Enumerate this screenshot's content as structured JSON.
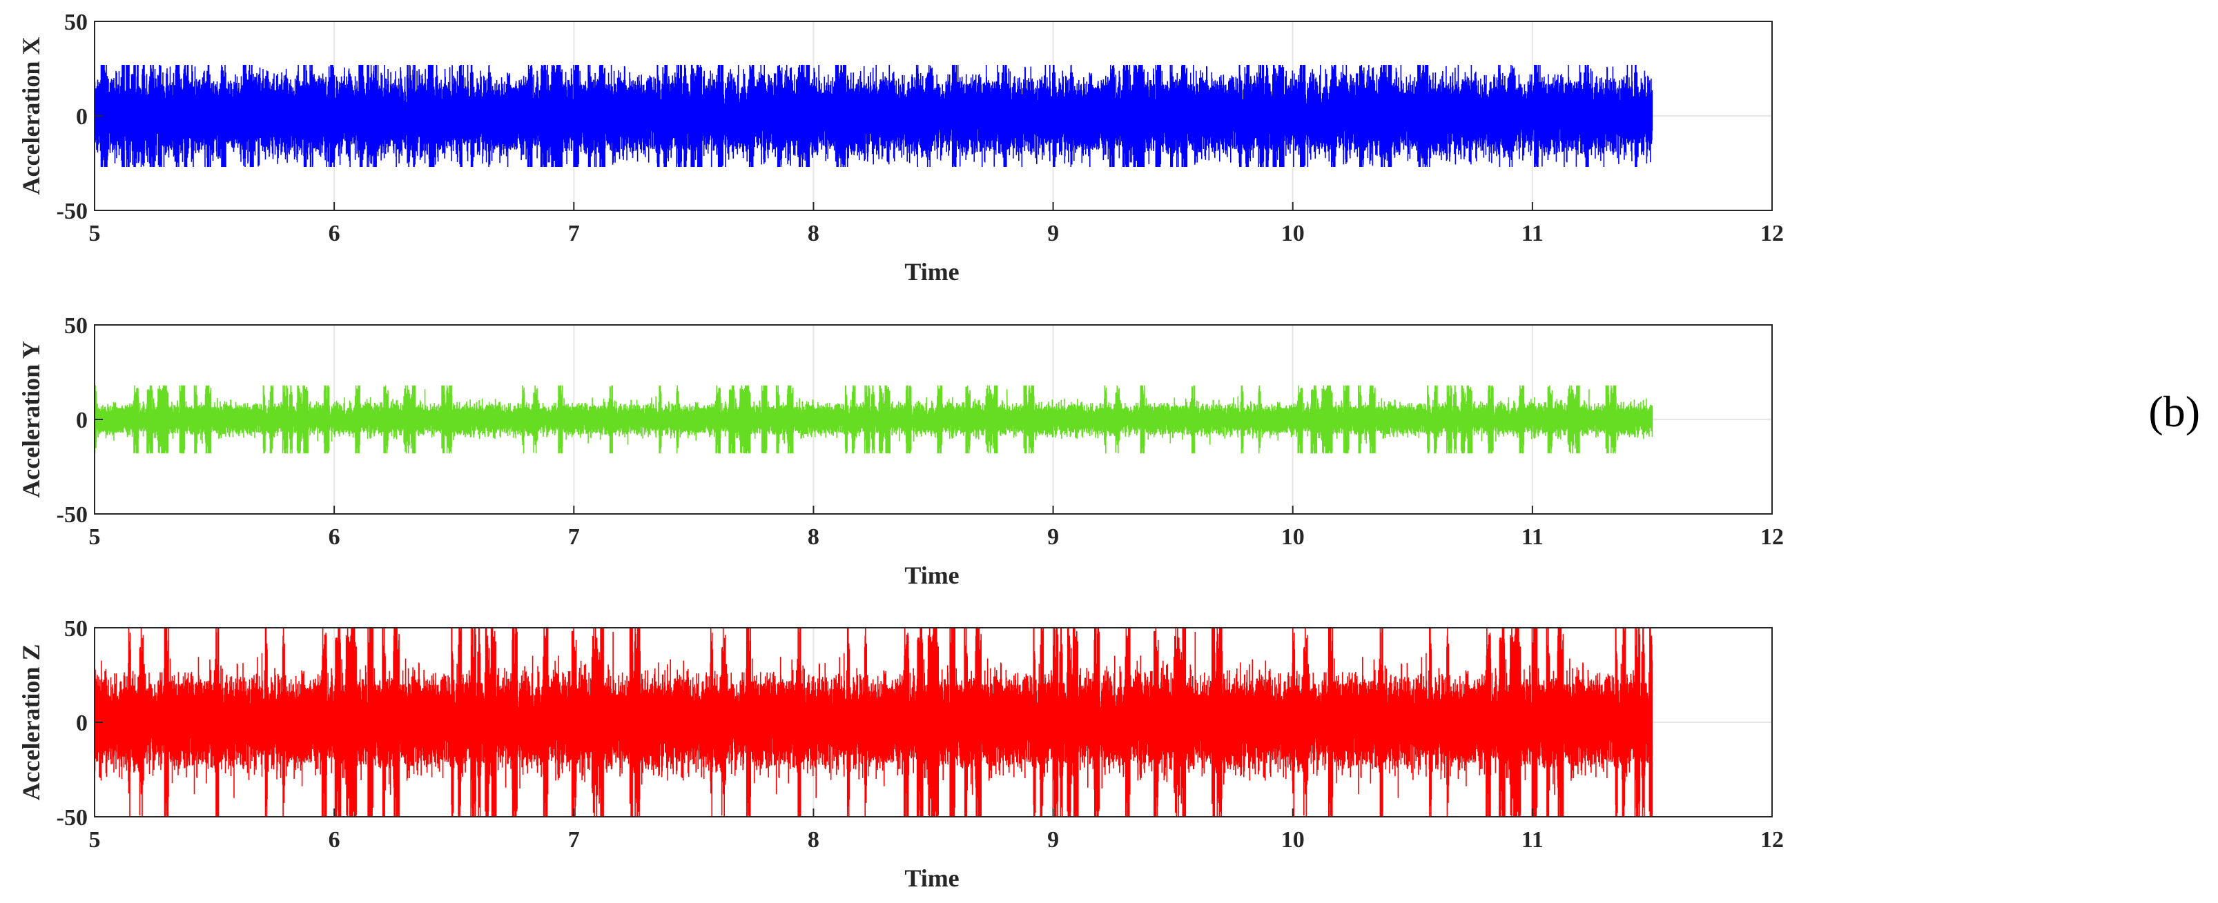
{
  "panel_label": "(b)",
  "chart_data": [
    {
      "type": "line",
      "title": "",
      "xlabel": "Time",
      "ylabel": "Acceleration X",
      "xlim": [
        5,
        12
      ],
      "ylim": [
        -50,
        50
      ],
      "xticks": [
        5,
        6,
        7,
        8,
        9,
        10,
        11,
        12
      ],
      "yticks": [
        -50,
        0,
        50
      ],
      "grid": true,
      "legend": "none",
      "series": [
        {
          "color": "#0000ff",
          "x_start": 5,
          "x_end": 11.5,
          "typical_amplitude": 15,
          "peak_amplitude": 27
        }
      ]
    },
    {
      "type": "line",
      "title": "",
      "xlabel": "Time",
      "ylabel": "Acceleration Y",
      "xlim": [
        5,
        12
      ],
      "ylim": [
        -50,
        50
      ],
      "xticks": [
        5,
        6,
        7,
        8,
        9,
        10,
        11,
        12
      ],
      "yticks": [
        -50,
        0,
        50
      ],
      "grid": true,
      "legend": "none",
      "series": [
        {
          "color": "#66dd22",
          "x_start": 5,
          "x_end": 11.5,
          "typical_amplitude": 6,
          "peak_amplitude": 18
        }
      ]
    },
    {
      "type": "line",
      "title": "",
      "xlabel": "Time",
      "ylabel": "Acceleration Z",
      "xlim": [
        5,
        12
      ],
      "ylim": [
        -50,
        50
      ],
      "xticks": [
        5,
        6,
        7,
        8,
        9,
        10,
        11,
        12
      ],
      "yticks": [
        -50,
        0,
        50
      ],
      "grid": true,
      "legend": "none",
      "series": [
        {
          "color": "#ff0000",
          "x_start": 5,
          "x_end": 11.5,
          "typical_amplitude": 18,
          "peak_amplitude": 50
        }
      ]
    }
  ]
}
